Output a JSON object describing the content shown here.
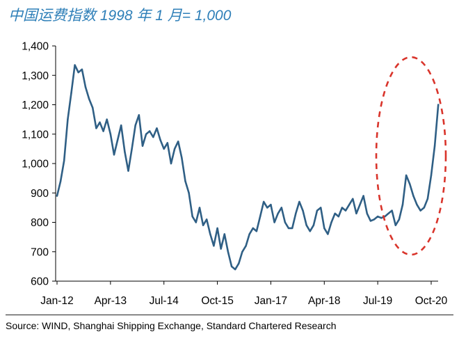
{
  "chart_data": {
    "type": "line",
    "title": "中国运费指数 1998 年 1 月= 1,000",
    "xlabel": "",
    "ylabel": "",
    "ylim": [
      600,
      1400
    ],
    "y_ticks": [
      "600",
      "700",
      "800",
      "900",
      "1,000",
      "1,100",
      "1,200",
      "1,300",
      "1,400"
    ],
    "x_ticks": [
      "Jan-12",
      "Apr-13",
      "Jul-14",
      "Oct-15",
      "Jan-17",
      "Apr-18",
      "Jul-19",
      "Oct-20"
    ],
    "grid": false,
    "series": [
      {
        "color": "#2f5f85",
        "points": [
          [
            "2012-01",
            890
          ],
          [
            "2012-02",
            940
          ],
          [
            "2012-03",
            1010
          ],
          [
            "2012-04",
            1150
          ],
          [
            "2012-05",
            1240
          ],
          [
            "2012-06",
            1335
          ],
          [
            "2012-07",
            1310
          ],
          [
            "2012-08",
            1320
          ],
          [
            "2012-09",
            1260
          ],
          [
            "2012-10",
            1220
          ],
          [
            "2012-11",
            1190
          ],
          [
            "2012-12",
            1120
          ],
          [
            "2013-01",
            1140
          ],
          [
            "2013-02",
            1110
          ],
          [
            "2013-03",
            1150
          ],
          [
            "2013-04",
            1100
          ],
          [
            "2013-05",
            1030
          ],
          [
            "2013-06",
            1080
          ],
          [
            "2013-07",
            1130
          ],
          [
            "2013-08",
            1040
          ],
          [
            "2013-09",
            975
          ],
          [
            "2013-10",
            1050
          ],
          [
            "2013-11",
            1130
          ],
          [
            "2013-12",
            1165
          ],
          [
            "2014-01",
            1060
          ],
          [
            "2014-02",
            1100
          ],
          [
            "2014-03",
            1110
          ],
          [
            "2014-04",
            1090
          ],
          [
            "2014-05",
            1120
          ],
          [
            "2014-06",
            1080
          ],
          [
            "2014-07",
            1050
          ],
          [
            "2014-08",
            1070
          ],
          [
            "2014-09",
            1000
          ],
          [
            "2014-10",
            1050
          ],
          [
            "2014-11",
            1075
          ],
          [
            "2014-12",
            1020
          ],
          [
            "2015-01",
            940
          ],
          [
            "2015-02",
            900
          ],
          [
            "2015-03",
            820
          ],
          [
            "2015-04",
            800
          ],
          [
            "2015-05",
            850
          ],
          [
            "2015-06",
            790
          ],
          [
            "2015-07",
            810
          ],
          [
            "2015-08",
            760
          ],
          [
            "2015-09",
            720
          ],
          [
            "2015-10",
            780
          ],
          [
            "2015-11",
            710
          ],
          [
            "2015-12",
            760
          ],
          [
            "2016-01",
            700
          ],
          [
            "2016-02",
            650
          ],
          [
            "2016-03",
            640
          ],
          [
            "2016-04",
            660
          ],
          [
            "2016-05",
            700
          ],
          [
            "2016-06",
            720
          ],
          [
            "2016-07",
            760
          ],
          [
            "2016-08",
            780
          ],
          [
            "2016-09",
            770
          ],
          [
            "2016-10",
            820
          ],
          [
            "2016-11",
            870
          ],
          [
            "2016-12",
            850
          ],
          [
            "2017-01",
            860
          ],
          [
            "2017-02",
            800
          ],
          [
            "2017-03",
            830
          ],
          [
            "2017-04",
            850
          ],
          [
            "2017-05",
            800
          ],
          [
            "2017-06",
            780
          ],
          [
            "2017-07",
            780
          ],
          [
            "2017-08",
            830
          ],
          [
            "2017-09",
            870
          ],
          [
            "2017-10",
            840
          ],
          [
            "2017-11",
            790
          ],
          [
            "2017-12",
            770
          ],
          [
            "2018-01",
            790
          ],
          [
            "2018-02",
            840
          ],
          [
            "2018-03",
            850
          ],
          [
            "2018-04",
            780
          ],
          [
            "2018-05",
            760
          ],
          [
            "2018-06",
            800
          ],
          [
            "2018-07",
            830
          ],
          [
            "2018-08",
            820
          ],
          [
            "2018-09",
            850
          ],
          [
            "2018-10",
            840
          ],
          [
            "2018-11",
            860
          ],
          [
            "2018-12",
            880
          ],
          [
            "2019-01",
            830
          ],
          [
            "2019-02",
            860
          ],
          [
            "2019-03",
            890
          ],
          [
            "2019-04",
            830
          ],
          [
            "2019-05",
            805
          ],
          [
            "2019-06",
            810
          ],
          [
            "2019-07",
            820
          ],
          [
            "2019-08",
            815
          ],
          [
            "2019-09",
            820
          ],
          [
            "2019-10",
            830
          ],
          [
            "2019-11",
            840
          ],
          [
            "2019-12",
            790
          ],
          [
            "2020-01",
            810
          ],
          [
            "2020-02",
            860
          ],
          [
            "2020-03",
            960
          ],
          [
            "2020-04",
            930
          ],
          [
            "2020-05",
            890
          ],
          [
            "2020-06",
            860
          ],
          [
            "2020-07",
            840
          ],
          [
            "2020-08",
            850
          ],
          [
            "2020-09",
            880
          ],
          [
            "2020-10",
            960
          ],
          [
            "2020-11",
            1060
          ],
          [
            "2020-12",
            1200
          ]
        ]
      }
    ]
  },
  "source": "Source: WIND, Shanghai Shipping Exchange, Standard Chartered Research",
  "colors": {
    "title": "#2e7fb8",
    "line": "#2f5f85",
    "ellipse": "#d9342b"
  }
}
